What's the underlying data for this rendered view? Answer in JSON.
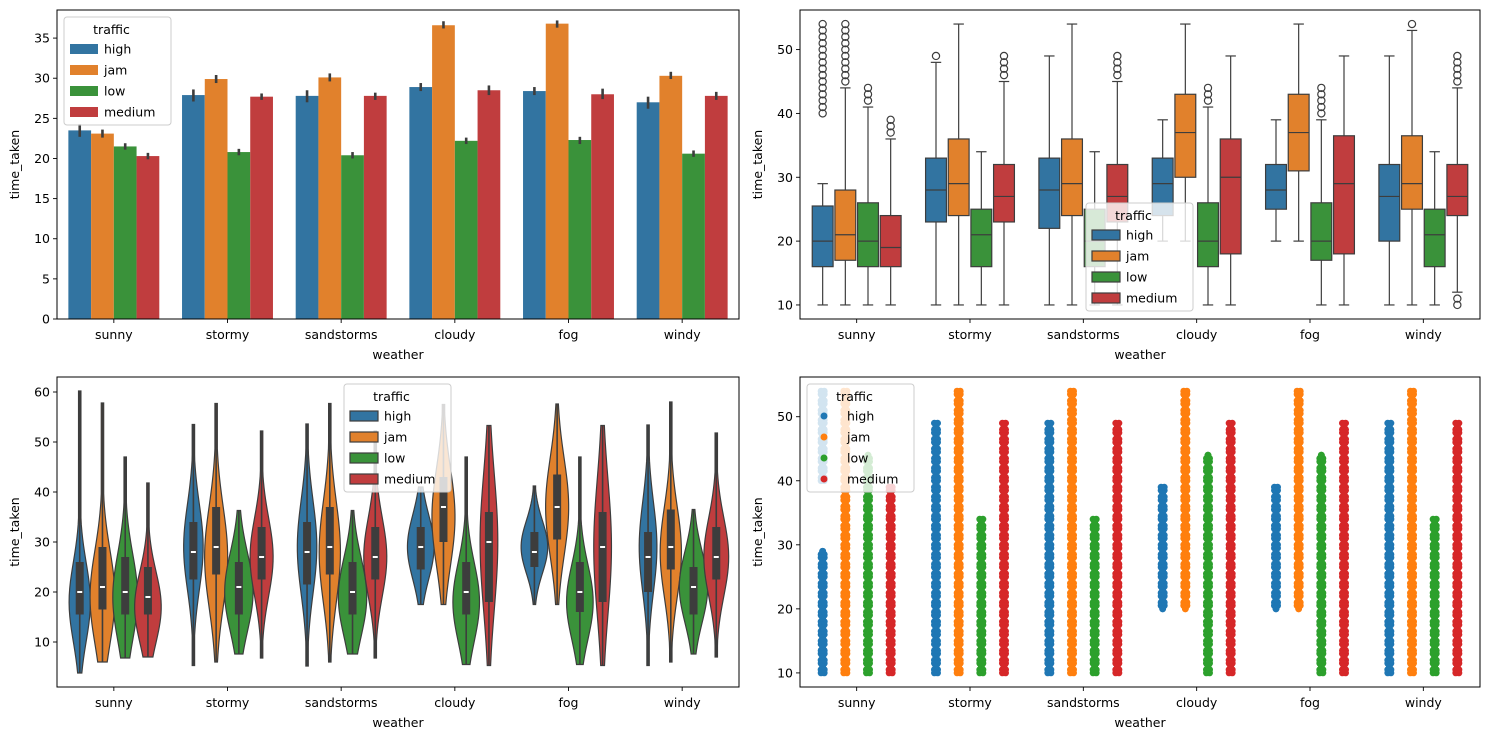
{
  "figure": {
    "hue_title": "traffic",
    "hue_levels": [
      "high",
      "jam",
      "low",
      "medium"
    ],
    "palette_muted": {
      "high": "#3274a1",
      "jam": "#e1812c",
      "low": "#3a923a",
      "medium": "#c03d3e"
    },
    "palette_bright": {
      "high": "#1f77b4",
      "jam": "#ff7f0e",
      "low": "#2ca02c",
      "medium": "#d62728"
    },
    "edge_color": "#3d3d3d"
  },
  "chart_data": [
    {
      "id": "bar",
      "type": "bar",
      "title": "",
      "xlabel": "weather",
      "ylabel": "time_taken",
      "categories": [
        "sunny",
        "stormy",
        "sandstorms",
        "cloudy",
        "fog",
        "windy"
      ],
      "ylim": [
        0,
        38.5
      ],
      "yticks": [
        0,
        5,
        10,
        15,
        20,
        25,
        30,
        35
      ],
      "legend": {
        "title": "traffic",
        "position": "upper-left"
      },
      "series": [
        {
          "name": "high",
          "values": [
            23.5,
            27.9,
            27.8,
            28.9,
            28.4,
            27.0
          ],
          "ci": [
            [
              22.7,
              24.3
            ],
            [
              27.1,
              28.6
            ],
            [
              27.0,
              28.5
            ],
            [
              28.4,
              29.4
            ],
            [
              27.9,
              28.9
            ],
            [
              26.2,
              27.7
            ]
          ]
        },
        {
          "name": "jam",
          "values": [
            23.1,
            29.9,
            30.1,
            36.6,
            36.8,
            30.3
          ],
          "ci": [
            [
              22.6,
              23.6
            ],
            [
              29.4,
              30.4
            ],
            [
              29.6,
              30.6
            ],
            [
              36.2,
              37.1
            ],
            [
              36.3,
              37.2
            ],
            [
              29.9,
              30.8
            ]
          ]
        },
        {
          "name": "low",
          "values": [
            21.5,
            20.8,
            20.4,
            22.2,
            22.3,
            20.6
          ],
          "ci": [
            [
              21.1,
              21.9
            ],
            [
              20.4,
              21.2
            ],
            [
              20.0,
              20.8
            ],
            [
              21.8,
              22.6
            ],
            [
              21.8,
              22.7
            ],
            [
              20.2,
              21.0
            ]
          ]
        },
        {
          "name": "medium",
          "values": [
            20.3,
            27.7,
            27.8,
            28.5,
            28.0,
            27.8
          ],
          "ci": [
            [
              19.9,
              20.7
            ],
            [
              27.3,
              28.1
            ],
            [
              27.3,
              28.2
            ],
            [
              27.9,
              29.1
            ],
            [
              27.4,
              28.7
            ],
            [
              27.3,
              28.3
            ]
          ]
        }
      ]
    },
    {
      "id": "box",
      "type": "box",
      "title": "",
      "xlabel": "weather",
      "ylabel": "time_taken",
      "categories": [
        "sunny",
        "stormy",
        "sandstorms",
        "cloudy",
        "fog",
        "windy"
      ],
      "ylim": [
        7.8,
        56.2
      ],
      "yticks": [
        10,
        20,
        30,
        40,
        50
      ],
      "legend": {
        "title": "traffic",
        "position": "lower-center"
      },
      "series": [
        {
          "name": "high",
          "boxes": [
            {
              "whislo": 10,
              "q1": 16,
              "med": 20,
              "q3": 25.5,
              "whishi": 29,
              "fliers": [
                40,
                41,
                42,
                43,
                44,
                45,
                46,
                47,
                48,
                49,
                50,
                51,
                52,
                53,
                54
              ]
            },
            {
              "whislo": 10,
              "q1": 23,
              "med": 28,
              "q3": 33,
              "whishi": 48,
              "fliers": [
                49
              ]
            },
            {
              "whislo": 10,
              "q1": 22,
              "med": 28,
              "q3": 33,
              "whishi": 49,
              "fliers": []
            },
            {
              "whislo": 20,
              "q1": 24,
              "med": 29,
              "q3": 33,
              "whishi": 39,
              "fliers": []
            },
            {
              "whislo": 20,
              "q1": 25,
              "med": 28,
              "q3": 32,
              "whishi": 39,
              "fliers": []
            },
            {
              "whislo": 10,
              "q1": 20,
              "med": 27,
              "q3": 32,
              "whishi": 49,
              "fliers": []
            }
          ]
        },
        {
          "name": "jam",
          "boxes": [
            {
              "whislo": 10,
              "q1": 17,
              "med": 21,
              "q3": 28,
              "whishi": 44,
              "fliers": [
                45,
                46,
                47,
                48,
                49,
                50,
                51,
                52,
                53,
                54
              ]
            },
            {
              "whislo": 10,
              "q1": 24,
              "med": 29,
              "q3": 36,
              "whishi": 54,
              "fliers": []
            },
            {
              "whislo": 10,
              "q1": 24,
              "med": 29,
              "q3": 36,
              "whishi": 54,
              "fliers": []
            },
            {
              "whislo": 20,
              "q1": 30,
              "med": 37,
              "q3": 43,
              "whishi": 54,
              "fliers": []
            },
            {
              "whislo": 20,
              "q1": 31,
              "med": 37,
              "q3": 43,
              "whishi": 54,
              "fliers": []
            },
            {
              "whislo": 10,
              "q1": 25,
              "med": 29,
              "q3": 36.5,
              "whishi": 53,
              "fliers": [
                54
              ]
            }
          ]
        },
        {
          "name": "low",
          "boxes": [
            {
              "whislo": 10,
              "q1": 16,
              "med": 20,
              "q3": 26,
              "whishi": 41,
              "fliers": [
                42,
                43,
                44
              ]
            },
            {
              "whislo": 10,
              "q1": 16,
              "med": 21,
              "q3": 25,
              "whishi": 34,
              "fliers": []
            },
            {
              "whislo": 10,
              "q1": 16,
              "med": 20,
              "q3": 25,
              "whishi": 34,
              "fliers": []
            },
            {
              "whislo": 10,
              "q1": 16,
              "med": 20,
              "q3": 26,
              "whishi": 41,
              "fliers": [
                42,
                43,
                44
              ]
            },
            {
              "whislo": 10,
              "q1": 17,
              "med": 20,
              "q3": 26,
              "whishi": 39,
              "fliers": [
                40,
                41,
                42,
                43,
                44
              ]
            },
            {
              "whislo": 10,
              "q1": 16,
              "med": 21,
              "q3": 25,
              "whishi": 34,
              "fliers": []
            }
          ]
        },
        {
          "name": "medium",
          "boxes": [
            {
              "whislo": 10,
              "q1": 16,
              "med": 19,
              "q3": 24,
              "whishi": 36,
              "fliers": [
                37,
                38,
                39
              ]
            },
            {
              "whislo": 10,
              "q1": 23,
              "med": 27,
              "q3": 32,
              "whishi": 45,
              "fliers": [
                46,
                47,
                48,
                49
              ]
            },
            {
              "whislo": 10,
              "q1": 23,
              "med": 27,
              "q3": 32,
              "whishi": 45,
              "fliers": [
                46,
                47,
                48,
                49
              ]
            },
            {
              "whislo": 10,
              "q1": 18,
              "med": 30,
              "q3": 36,
              "whishi": 49,
              "fliers": []
            },
            {
              "whislo": 10,
              "q1": 18,
              "med": 29,
              "q3": 36.5,
              "whishi": 49,
              "fliers": []
            },
            {
              "whislo": 12,
              "q1": 24,
              "med": 27,
              "q3": 32,
              "whishi": 44,
              "fliers": [
                10,
                11,
                45,
                46,
                47,
                48,
                49
              ]
            }
          ]
        }
      ]
    },
    {
      "id": "violin",
      "type": "violin",
      "title": "",
      "xlabel": "weather",
      "ylabel": "time_taken",
      "categories": [
        "sunny",
        "stormy",
        "sandstorms",
        "cloudy",
        "fog",
        "windy"
      ],
      "ylim": [
        1,
        63
      ],
      "yticks": [
        10,
        20,
        30,
        40,
        50,
        60
      ],
      "legend": {
        "title": "traffic",
        "position": "upper-center"
      },
      "series": [
        {
          "name": "high",
          "violins": [
            {
              "min": 3.8,
              "max": 60.2,
              "q1": 15.5,
              "med": 20,
              "q3": 26,
              "peak": 18,
              "width": 0.6
            },
            {
              "min": 5.3,
              "max": 53.5,
              "q1": 22.5,
              "med": 28,
              "q3": 34,
              "peak": 29,
              "width": 0.55
            },
            {
              "min": 5.2,
              "max": 53.6,
              "q1": 21.5,
              "med": 28,
              "q3": 34,
              "peak": 29,
              "width": 0.55
            },
            {
              "min": 17.5,
              "max": 41,
              "q1": 24.5,
              "med": 29,
              "q3": 33,
              "peak": 29,
              "width": 0.75
            },
            {
              "min": 17.5,
              "max": 41.2,
              "q1": 25,
              "med": 28,
              "q3": 32,
              "peak": 29,
              "width": 0.75
            },
            {
              "min": 5.3,
              "max": 53.4,
              "q1": 20,
              "med": 27,
              "q3": 32,
              "peak": 29,
              "width": 0.5
            }
          ]
        },
        {
          "name": "jam",
          "violins": [
            {
              "min": 6,
              "max": 57.8,
              "q1": 16.5,
              "med": 21,
              "q3": 29,
              "peak": 19,
              "width": 0.7
            },
            {
              "min": 6,
              "max": 57.7,
              "q1": 23.5,
              "med": 29,
              "q3": 37,
              "peak": 27,
              "width": 0.65
            },
            {
              "min": 6,
              "max": 57.7,
              "q1": 23.5,
              "med": 29,
              "q3": 37,
              "peak": 28,
              "width": 0.6
            },
            {
              "min": 17.5,
              "max": 57.5,
              "q1": 30,
              "med": 37,
              "q3": 43,
              "peak": 35,
              "width": 0.65
            },
            {
              "min": 17.5,
              "max": 57.6,
              "q1": 30.5,
              "med": 37,
              "q3": 43.5,
              "peak": 37,
              "width": 0.65
            },
            {
              "min": 6,
              "max": 58,
              "q1": 24.5,
              "med": 29,
              "q3": 36.5,
              "peak": 28,
              "width": 0.6
            }
          ]
        },
        {
          "name": "low",
          "violins": [
            {
              "min": 6.8,
              "max": 47,
              "q1": 15.5,
              "med": 20,
              "q3": 27,
              "peak": 19,
              "width": 0.7
            },
            {
              "min": 7.6,
              "max": 36.3,
              "q1": 15.5,
              "med": 21,
              "q3": 26,
              "peak": 20,
              "width": 0.8
            },
            {
              "min": 7.6,
              "max": 36.3,
              "q1": 15.5,
              "med": 20,
              "q3": 26,
              "peak": 19,
              "width": 0.8
            },
            {
              "min": 5.5,
              "max": 47,
              "q1": 15.5,
              "med": 20,
              "q3": 26,
              "peak": 18,
              "width": 0.75
            },
            {
              "min": 5.5,
              "max": 47,
              "q1": 16,
              "med": 20,
              "q3": 26,
              "peak": 18,
              "width": 0.75
            },
            {
              "min": 7.6,
              "max": 36.5,
              "q1": 15.5,
              "med": 21,
              "q3": 25,
              "peak": 21,
              "width": 0.8
            }
          ]
        },
        {
          "name": "medium",
          "violins": [
            {
              "min": 7,
              "max": 41.8,
              "q1": 15.5,
              "med": 19,
              "q3": 25,
              "peak": 17,
              "width": 0.75
            },
            {
              "min": 6.8,
              "max": 52.2,
              "q1": 22.5,
              "med": 27,
              "q3": 33,
              "peak": 27,
              "width": 0.65
            },
            {
              "min": 6.8,
              "max": 52.2,
              "q1": 22.5,
              "med": 27,
              "q3": 33,
              "peak": 27,
              "width": 0.65
            },
            {
              "min": 5.3,
              "max": 53.3,
              "q1": 18,
              "med": 30,
              "q3": 36,
              "peak": 30,
              "width": 0.5
            },
            {
              "min": 5.3,
              "max": 53.3,
              "q1": 18,
              "med": 29,
              "q3": 36,
              "peak": 29,
              "width": 0.5
            },
            {
              "min": 7,
              "max": 51.8,
              "q1": 22.5,
              "med": 27,
              "q3": 33,
              "peak": 27,
              "width": 0.7
            }
          ]
        }
      ]
    },
    {
      "id": "swarm",
      "type": "scatter",
      "title": "",
      "xlabel": "weather",
      "ylabel": "time_taken",
      "categories": [
        "sunny",
        "stormy",
        "sandstorms",
        "cloudy",
        "fog",
        "windy"
      ],
      "ylim": [
        7.8,
        56.2
      ],
      "yticks": [
        10,
        20,
        30,
        40,
        50
      ],
      "legend": {
        "title": "traffic",
        "position": "upper-left"
      },
      "series": [
        {
          "name": "high",
          "ranges": [
            [
              10,
              29
            ],
            [
              10,
              49
            ],
            [
              10,
              49
            ],
            [
              20,
              39
            ],
            [
              20,
              39
            ],
            [
              10,
              49
            ]
          ],
          "extra": [
            [
              40,
              54
            ],
            [],
            [],
            [],
            [],
            []
          ]
        },
        {
          "name": "jam",
          "ranges": [
            [
              10,
              54
            ],
            [
              10,
              54
            ],
            [
              10,
              54
            ],
            [
              20,
              54
            ],
            [
              20,
              54
            ],
            [
              10,
              54
            ]
          ],
          "extra": [
            [],
            [],
            [],
            [],
            [],
            []
          ]
        },
        {
          "name": "low",
          "ranges": [
            [
              10,
              44
            ],
            [
              10,
              34
            ],
            [
              10,
              34
            ],
            [
              10,
              44
            ],
            [
              10,
              44
            ],
            [
              10,
              34
            ]
          ],
          "extra": [
            [],
            [],
            [],
            [],
            [],
            []
          ]
        },
        {
          "name": "medium",
          "ranges": [
            [
              10,
              39
            ],
            [
              10,
              49
            ],
            [
              10,
              49
            ],
            [
              10,
              49
            ],
            [
              10,
              49
            ],
            [
              10,
              49
            ]
          ],
          "extra": [
            [],
            [],
            [],
            [],
            [],
            []
          ]
        }
      ]
    }
  ]
}
